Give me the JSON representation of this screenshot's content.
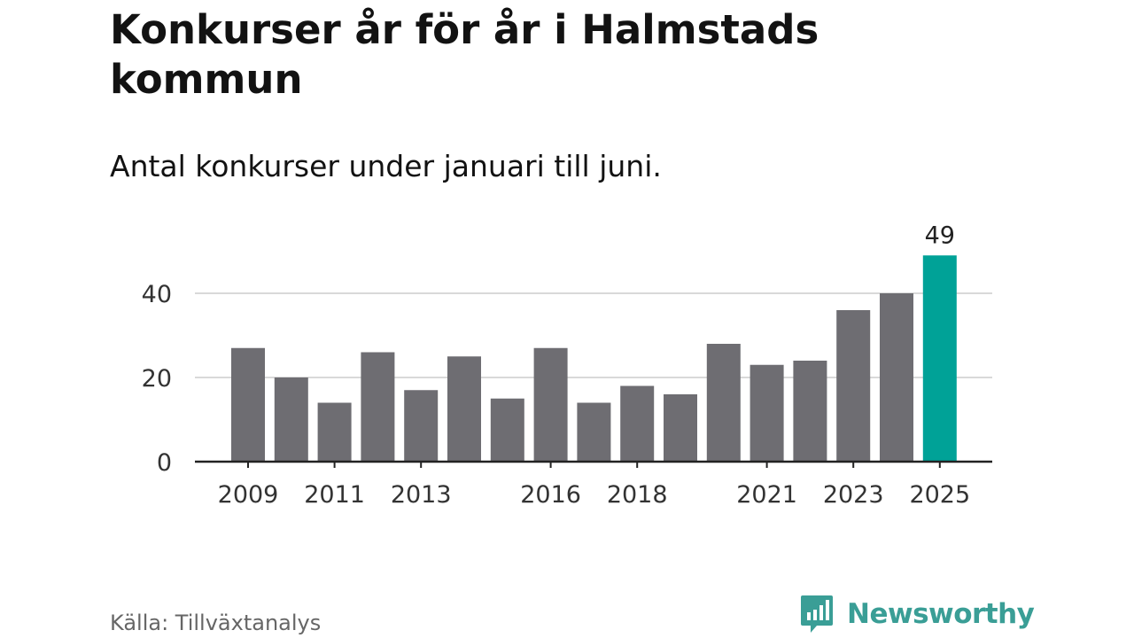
{
  "header": {
    "title": "Konkurser år för år i Halmstads kommun",
    "subtitle": "Antal konkurser under januari till juni."
  },
  "footer": {
    "source": "Källa: Tillväxtanalys",
    "brand": "Newsworthy",
    "brand_icon": "newsworthy-logo-icon"
  },
  "colors": {
    "bar": "#6e6d72",
    "highlight": "#00a297",
    "grid": "#d9d9d9",
    "axis": "#222222",
    "brand": "#3a9e96"
  },
  "chart_data": {
    "type": "bar",
    "x": [
      2009,
      2010,
      2011,
      2012,
      2013,
      2014,
      2015,
      2016,
      2017,
      2018,
      2019,
      2020,
      2021,
      2022,
      2023,
      2024,
      2025
    ],
    "values": [
      27,
      20,
      14,
      26,
      17,
      25,
      15,
      27,
      14,
      18,
      16,
      28,
      23,
      24,
      36,
      40,
      49
    ],
    "highlight": [
      2025
    ],
    "data_labels": [
      {
        "x": 2025,
        "label": "49"
      }
    ],
    "x_tick_labels": [
      "2009",
      "2011",
      "2013",
      "2016",
      "2018",
      "2021",
      "2023",
      "2025"
    ],
    "y_ticks": [
      0,
      20,
      40
    ],
    "ylim": [
      0,
      49
    ],
    "grid": true,
    "legend": "none",
    "xlabel": "",
    "ylabel": ""
  }
}
